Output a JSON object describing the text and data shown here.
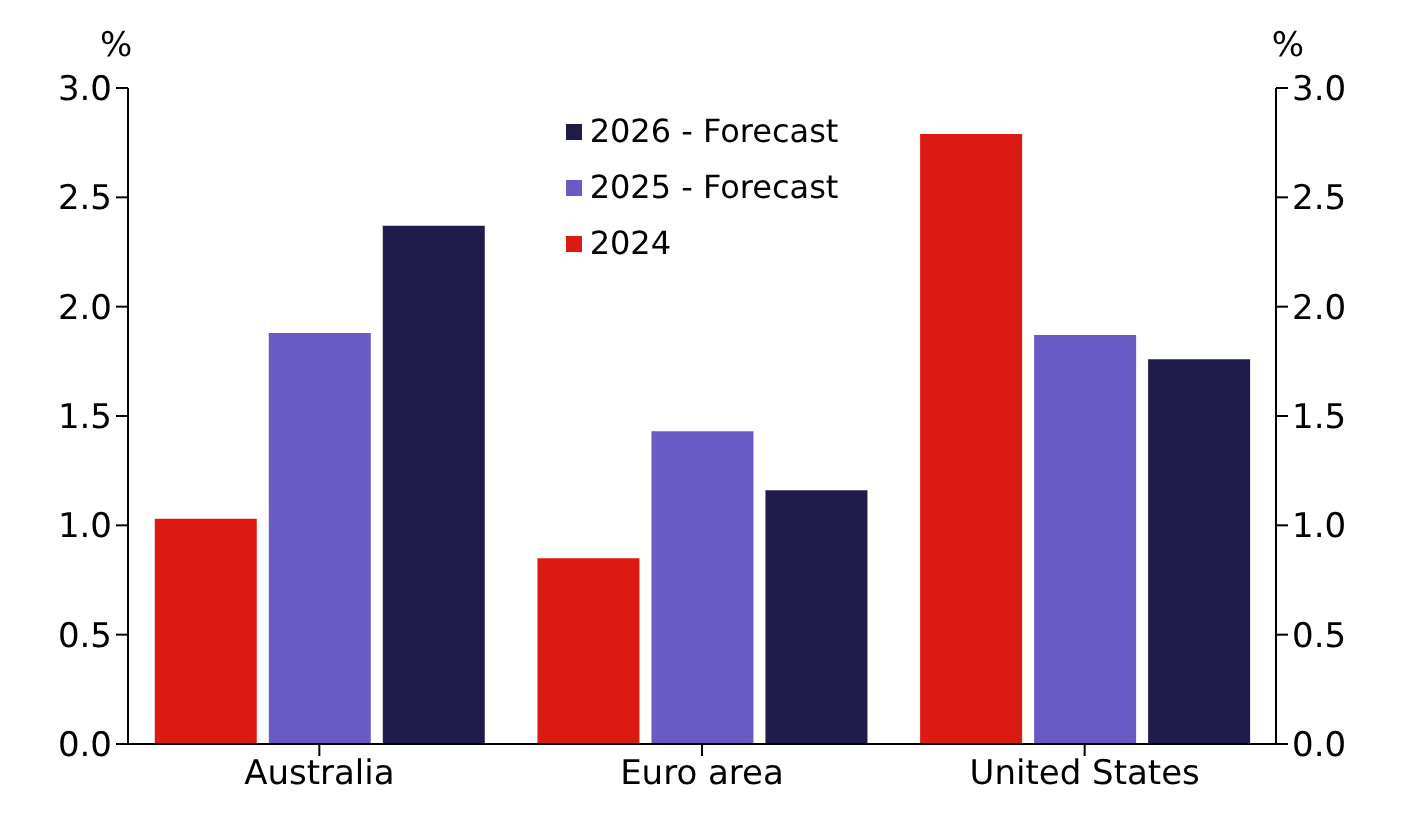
{
  "chart_data": {
    "type": "bar",
    "categories": [
      "Australia",
      "Euro area",
      "United States"
    ],
    "series": [
      {
        "name": "2024",
        "color": "#db1a14",
        "values": [
          1.03,
          0.85,
          2.79
        ]
      },
      {
        "name": "2025 - Forecast",
        "color": "#6a5ac4",
        "values": [
          1.88,
          1.43,
          1.87
        ]
      },
      {
        "name": "2026 - Forecast",
        "color": "#1f1c4c",
        "values": [
          2.37,
          1.16,
          1.76
        ]
      }
    ],
    "ylabel": "%",
    "y2label": "%",
    "ylim": [
      0,
      3
    ],
    "yticks": [
      {
        "value": 0,
        "label": "0.0"
      },
      0.5,
      {
        "value": 1,
        "label": "1.0"
      },
      1.5,
      {
        "value": 2,
        "label": "2.0"
      },
      2.5,
      {
        "value": 3,
        "label": "3.0"
      }
    ],
    "y2lim": [
      0,
      3
    ],
    "y2ticks": [
      {
        "value": 0,
        "label": "0.0"
      },
      0.5,
      {
        "value": 1,
        "label": "1.0"
      },
      1.5,
      {
        "value": 2,
        "label": "2.0"
      },
      2.5,
      {
        "value": 3,
        "label": "3.0"
      }
    ],
    "grid": false,
    "legend": "top"
  }
}
